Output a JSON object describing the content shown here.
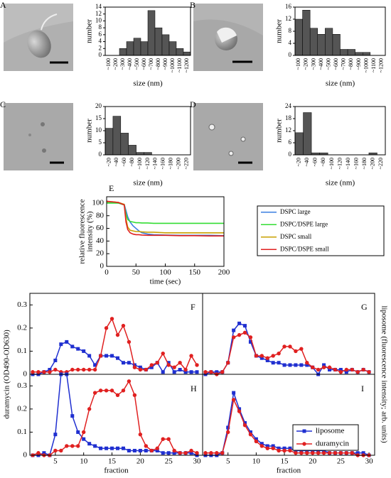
{
  "chart_data": [
    {
      "type": "bar",
      "label": "A",
      "xlabel": "size (nm)",
      "ylabel": "number",
      "color": "#555555",
      "categories": [
        "~100",
        "~200",
        "~300",
        "~400",
        "~500",
        "~600",
        "~700",
        "~800",
        "~900",
        "~1000",
        "~1100",
        "~1200"
      ],
      "values": [
        0,
        0,
        2,
        4,
        5,
        4,
        13,
        8,
        6,
        4,
        2,
        1
      ],
      "ylim": [
        0,
        14
      ],
      "yticks": [
        0,
        2,
        4,
        6,
        8,
        10,
        12,
        14
      ]
    },
    {
      "type": "bar",
      "label": "B",
      "xlabel": "size (nm)",
      "ylabel": "number",
      "color": "#555555",
      "categories": [
        "~100",
        "~200",
        "~300",
        "~400",
        "~500",
        "~600",
        "~700",
        "~800",
        "~900",
        "~1000",
        "~1100",
        "~1200"
      ],
      "values": [
        12,
        15,
        9,
        7,
        9,
        7,
        2,
        2,
        1,
        1,
        0,
        0
      ],
      "ylim": [
        0,
        16
      ],
      "yticks": [
        0,
        4,
        8,
        12,
        16
      ]
    },
    {
      "type": "bar",
      "label": "C",
      "xlabel": "size (nm)",
      "ylabel": "number",
      "color": "#555555",
      "categories": [
        "~20",
        "~40",
        "~60",
        "~80",
        "~100",
        "~120",
        "~140",
        "~160",
        "~180",
        "~200",
        "~220"
      ],
      "values": [
        11,
        16,
        9,
        4,
        1,
        1,
        0,
        0,
        0,
        0,
        0
      ],
      "ylim": [
        0,
        20
      ],
      "yticks": [
        0,
        5,
        10,
        15,
        20
      ]
    },
    {
      "type": "bar",
      "label": "D",
      "xlabel": "size (nm)",
      "ylabel": "number",
      "color": "#555555",
      "categories": [
        "~20",
        "~40",
        "~60",
        "~80",
        "~100",
        "~120",
        "~140",
        "~160",
        "~180",
        "~200",
        "~220"
      ],
      "values": [
        11,
        21,
        1,
        1,
        0,
        0,
        0,
        0,
        0,
        1,
        0
      ],
      "ylim": [
        0,
        24
      ],
      "yticks": [
        0,
        6,
        12,
        18,
        24
      ]
    },
    {
      "type": "line",
      "label": "E",
      "xlabel": "time (sec)",
      "ylabel": [
        "relative fluorescence",
        "intensity (%)"
      ],
      "x": [
        0,
        10,
        20,
        30,
        33,
        36,
        40,
        45,
        50,
        55,
        60,
        70,
        80,
        100,
        125,
        150,
        175,
        200
      ],
      "series": [
        {
          "name": "DSPC large",
          "color": "#3a7ee0",
          "values": [
            101,
            101,
            100,
            98,
            88,
            78,
            70,
            64,
            60,
            56,
            53,
            51,
            50,
            49.5,
            49,
            49,
            49,
            48.5
          ]
        },
        {
          "name": "DSPC/DSPE large",
          "color": "#33dd33",
          "values": [
            100,
            100,
            100,
            97,
            82,
            74,
            71,
            70,
            69,
            69,
            68.5,
            68.5,
            68,
            68,
            68,
            68,
            68,
            68
          ]
        },
        {
          "name": "DSPC small",
          "color": "#c8a000",
          "values": [
            102,
            102,
            101,
            98,
            75,
            62,
            57,
            56,
            55,
            55,
            54.5,
            54,
            54,
            53,
            53,
            53,
            53,
            53
          ]
        },
        {
          "name": "DSPC/DSPE small",
          "color": "#e02020",
          "values": [
            103,
            102,
            101,
            97,
            70,
            58,
            53,
            51,
            50,
            50,
            49.5,
            49,
            49,
            49,
            48.5,
            48.5,
            48,
            48
          ]
        }
      ],
      "xlim": [
        0,
        200
      ],
      "xticks": [
        0,
        50,
        100,
        150,
        200
      ],
      "ylim": [
        0,
        110
      ],
      "yticks": [
        0,
        20,
        40,
        60,
        80,
        100
      ],
      "legend": "right"
    },
    {
      "type": "line",
      "label": "F",
      "ylabel": "duramycin (OD490-OD630)",
      "x": [
        1,
        2,
        3,
        4,
        5,
        6,
        7,
        8,
        9,
        10,
        11,
        12,
        13,
        14,
        15,
        16,
        17,
        18,
        19,
        20,
        21,
        22,
        23,
        24,
        25,
        26,
        27,
        28,
        29,
        30
      ],
      "series": [
        {
          "color": "#1f2fd0",
          "marker": "square",
          "axis": "y2",
          "values": [
            0,
            0,
            0.01,
            0.02,
            0.06,
            0.13,
            0.14,
            0.12,
            0.11,
            0.1,
            0.08,
            0.04,
            0.08,
            0.08,
            0.08,
            0.07,
            0.05,
            0.05,
            0.04,
            0.03,
            0.02,
            0.03,
            0.05,
            0.01,
            0.05,
            0.01,
            0.02,
            0.01,
            0.01,
            0.01
          ]
        },
        {
          "color": "#e02020",
          "marker": "circle",
          "values": [
            0.01,
            0.01,
            0.01,
            0.01,
            0.02,
            0.01,
            0.01,
            0.02,
            0.02,
            0.02,
            0.02,
            0.02,
            0.08,
            0.2,
            0.24,
            0.17,
            0.21,
            0.14,
            0.03,
            0.02,
            0.02,
            0.04,
            0.05,
            0.09,
            0.04,
            0.03,
            0.05,
            0.02,
            0.08,
            0.04
          ]
        }
      ],
      "xlim": [
        0.5,
        31
      ],
      "ylim": [
        0,
        0.35
      ],
      "yticks": [
        0,
        0.1,
        0.2,
        0.3
      ],
      "y2lim": [
        0,
        0.35
      ]
    },
    {
      "type": "line",
      "label": "G",
      "y2label": "liposome (fluorescence intensity; arb. units)",
      "x": [
        1,
        2,
        3,
        4,
        5,
        6,
        7,
        8,
        9,
        10,
        11,
        12,
        13,
        14,
        15,
        16,
        17,
        18,
        19,
        20,
        21,
        22,
        23,
        24,
        25,
        26,
        27,
        28,
        29,
        30
      ],
      "series": [
        {
          "color": "#1f2fd0",
          "marker": "square",
          "axis": "y2",
          "values": [
            0,
            0.01,
            0.01,
            0.01,
            0.05,
            0.19,
            0.22,
            0.21,
            0.14,
            0.08,
            0.07,
            0.06,
            0.05,
            0.05,
            0.04,
            0.04,
            0.04,
            0.04,
            0.04,
            0.03,
            0,
            0.04,
            0.02,
            0.02,
            0.02,
            0.01,
            0.02,
            0.01,
            0.02,
            0.01
          ]
        },
        {
          "color": "#e02020",
          "marker": "circle",
          "values": [
            0.01,
            0.01,
            0,
            0.01,
            0.05,
            0.16,
            0.17,
            0.18,
            0.16,
            0.08,
            0.08,
            0.07,
            0.08,
            0.09,
            0.12,
            0.12,
            0.1,
            0.11,
            0.05,
            0.03,
            0.02,
            0.03,
            0.03,
            0.02,
            0.01,
            0.02,
            0.02,
            0.01,
            0.02,
            0.01
          ]
        }
      ],
      "xlim": [
        0.5,
        31
      ],
      "ylim": [
        0,
        0.35
      ],
      "y2lim": [
        0,
        0.35
      ]
    },
    {
      "type": "line",
      "label": "H",
      "xlabel": "fraction",
      "x": [
        1,
        2,
        3,
        4,
        5,
        6,
        7,
        8,
        9,
        10,
        11,
        12,
        13,
        14,
        15,
        16,
        17,
        18,
        19,
        20,
        21,
        22,
        23,
        24,
        25,
        26,
        27,
        28,
        29,
        30
      ],
      "series": [
        {
          "color": "#1f2fd0",
          "marker": "square",
          "axis": "y2",
          "values": [
            0,
            0,
            0.01,
            0,
            0.09,
            0.35,
            0.35,
            0.17,
            0.1,
            0.07,
            0.05,
            0.04,
            0.03,
            0.03,
            0.03,
            0.03,
            0.03,
            0.02,
            0.02,
            0.02,
            0.02,
            0.02,
            0.02,
            0.01,
            0.01,
            0.01,
            0.01,
            0.01,
            0.01,
            0
          ]
        },
        {
          "color": "#e02020",
          "marker": "circle",
          "values": [
            0,
            0.01,
            0,
            0,
            0.02,
            0.02,
            0.04,
            0.04,
            0.04,
            0.1,
            0.2,
            0.27,
            0.28,
            0.28,
            0.28,
            0.26,
            0.28,
            0.32,
            0.26,
            0.09,
            0.04,
            0.02,
            0.03,
            0.07,
            0.07,
            0.02,
            0.01,
            0.01,
            0.02,
            0.01
          ]
        }
      ],
      "xlim": [
        0.5,
        31
      ],
      "xticks": [
        5,
        10,
        15,
        20,
        25,
        30
      ],
      "ylim": [
        0,
        0.35
      ],
      "yticks": [
        0,
        0.1,
        0.2,
        0.3
      ],
      "y2lim": [
        0,
        0.35
      ]
    },
    {
      "type": "line",
      "label": "I",
      "xlabel": "fraction",
      "x": [
        1,
        2,
        3,
        4,
        5,
        6,
        7,
        8,
        9,
        10,
        11,
        12,
        13,
        14,
        15,
        16,
        17,
        18,
        19,
        20,
        21,
        22,
        23,
        24,
        25,
        26,
        27,
        28,
        29,
        30
      ],
      "series": [
        {
          "name": "liposome",
          "color": "#1f2fd0",
          "marker": "square",
          "axis": "y2",
          "values": [
            0,
            0,
            0,
            0.01,
            0.12,
            0.27,
            0.2,
            0.14,
            0.1,
            0.07,
            0.05,
            0.04,
            0.04,
            0.03,
            0.03,
            0.03,
            0.02,
            0.02,
            0.02,
            0.02,
            0.02,
            0.02,
            0.01,
            0.01,
            0.01,
            0.01,
            0.01,
            0.01,
            0.01,
            0
          ]
        },
        {
          "name": "duramycin",
          "color": "#e02020",
          "marker": "circle",
          "values": [
            0.01,
            0.01,
            0.01,
            0.01,
            0.1,
            0.24,
            0.19,
            0.13,
            0.09,
            0.06,
            0.04,
            0.03,
            0.03,
            0.02,
            0.02,
            0.02,
            0.01,
            0.01,
            0.01,
            0.01,
            0.01,
            0.01,
            0.01,
            0.01,
            0.01,
            0.01,
            0.01,
            0,
            0,
            0
          ]
        }
      ],
      "xlim": [
        0.5,
        31
      ],
      "xticks": [
        5,
        10,
        15,
        20,
        25,
        30
      ],
      "ylim": [
        0,
        0.35
      ],
      "y2lim": [
        0,
        0.35
      ],
      "legend": "right"
    }
  ]
}
